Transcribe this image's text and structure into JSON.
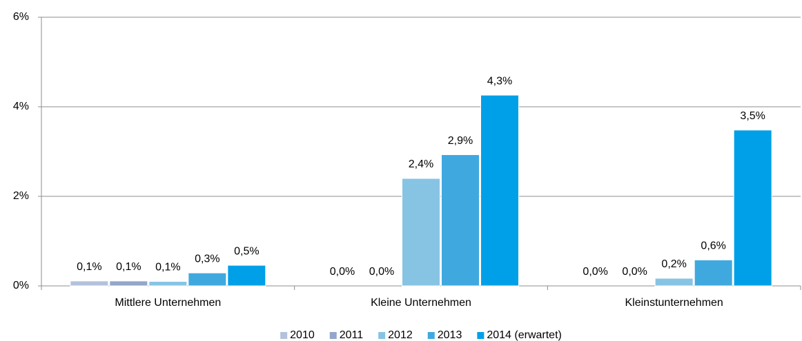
{
  "chart_data": {
    "type": "bar",
    "categories": [
      "Mittlere Unternehmen",
      "Kleine Unternehmen",
      "Kleinstunternehmen"
    ],
    "series": [
      {
        "name": "2010",
        "color": "#b4c2dc",
        "values": [
          0.11,
          0,
          0
        ],
        "value_labels": [
          "0,1%",
          "0,0%",
          "0,0%"
        ]
      },
      {
        "name": "2011",
        "color": "#93a6cb",
        "values": [
          0.11,
          0,
          0
        ],
        "value_labels": [
          "0,1%",
          "0,0%",
          "0,0%"
        ]
      },
      {
        "name": "2012",
        "color": "#87c4e4",
        "values": [
          0.1,
          2.4,
          0.17
        ],
        "value_labels": [
          "0,1%",
          "2,4%",
          "0,2%"
        ]
      },
      {
        "name": "2013",
        "color": "#3fa9df",
        "values": [
          0.29,
          2.93,
          0.58
        ],
        "value_labels": [
          "0,3%",
          "2,9%",
          "0,6%"
        ]
      },
      {
        "name": "2014 (erwartet)",
        "color": "#00a0e8",
        "values": [
          0.46,
          4.26,
          3.48
        ],
        "value_labels": [
          "0,5%",
          "4,3%",
          "3,5%"
        ]
      }
    ],
    "ylim": [
      0,
      6
    ],
    "yticks": [
      {
        "value": 0,
        "label": "0%"
      },
      {
        "value": 2,
        "label": "2%"
      },
      {
        "value": 4,
        "label": "4%"
      },
      {
        "value": 6,
        "label": "6%"
      }
    ],
    "grid": true,
    "legend": "bottom"
  }
}
